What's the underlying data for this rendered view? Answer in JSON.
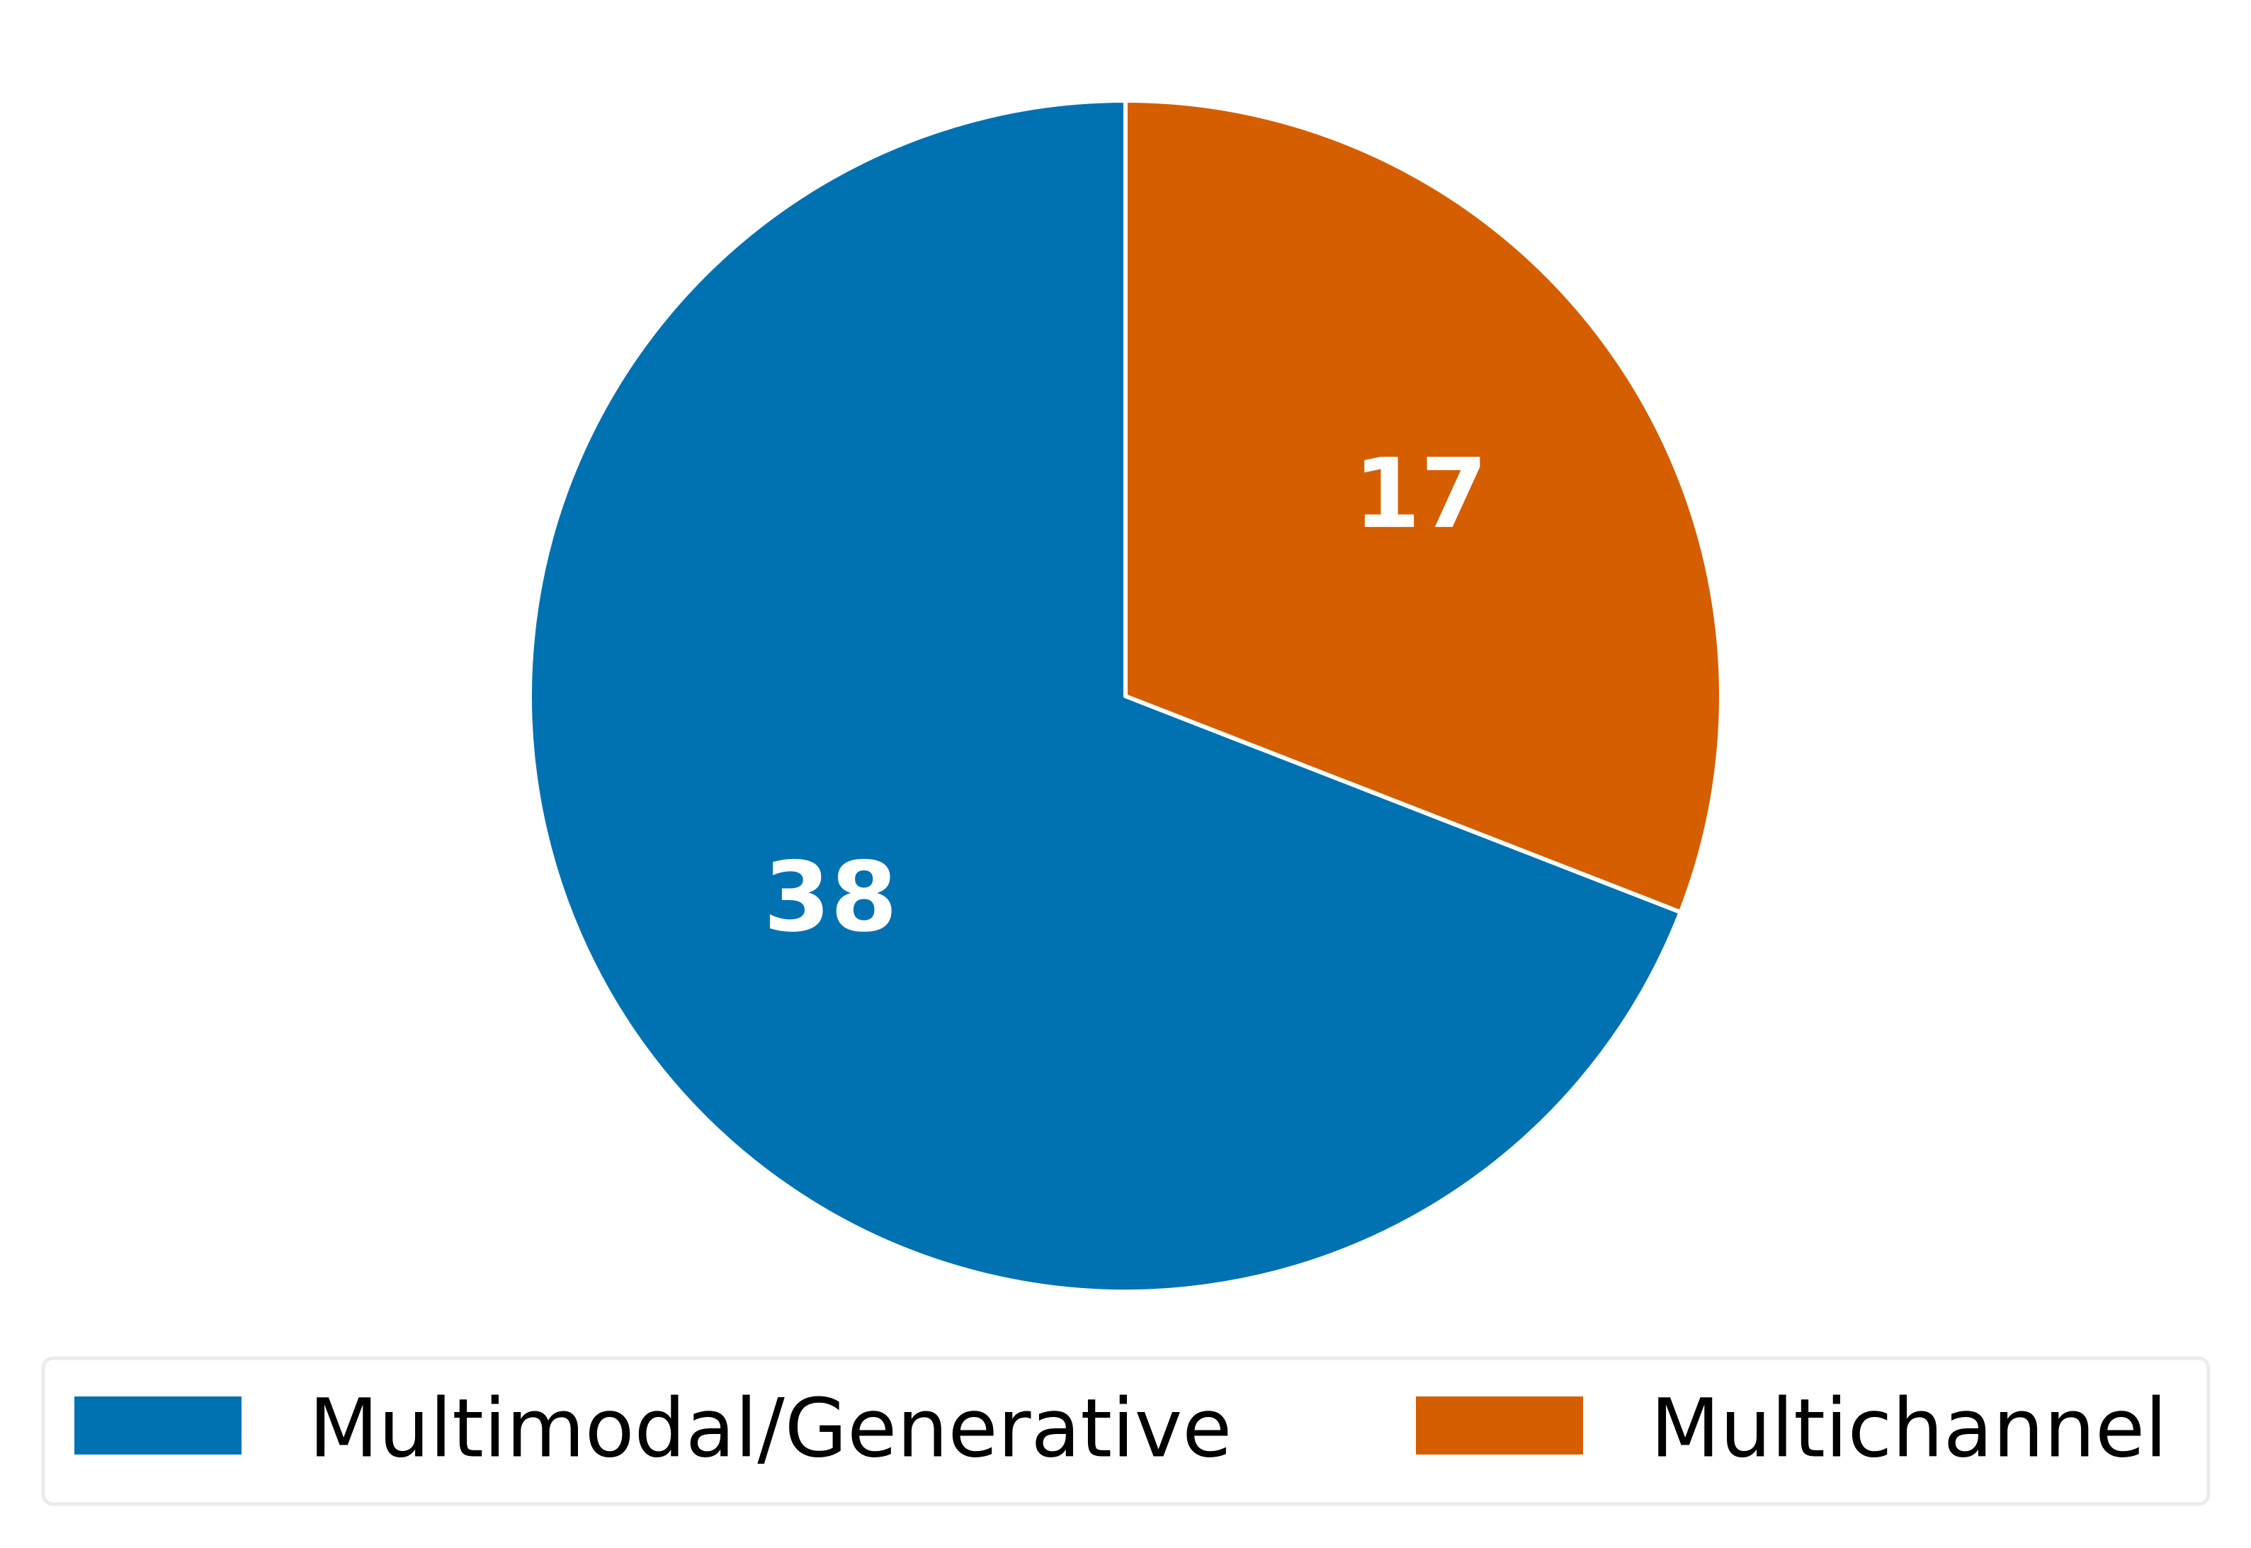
{
  "chart_data": {
    "type": "pie",
    "categories": [
      "Multimodal/Generative",
      "Multichannel"
    ],
    "values": [
      38,
      17
    ],
    "colors": [
      "#0072b2",
      "#d55e00"
    ],
    "start_angle": 90,
    "counterclockwise": true,
    "legend": "bottom"
  }
}
